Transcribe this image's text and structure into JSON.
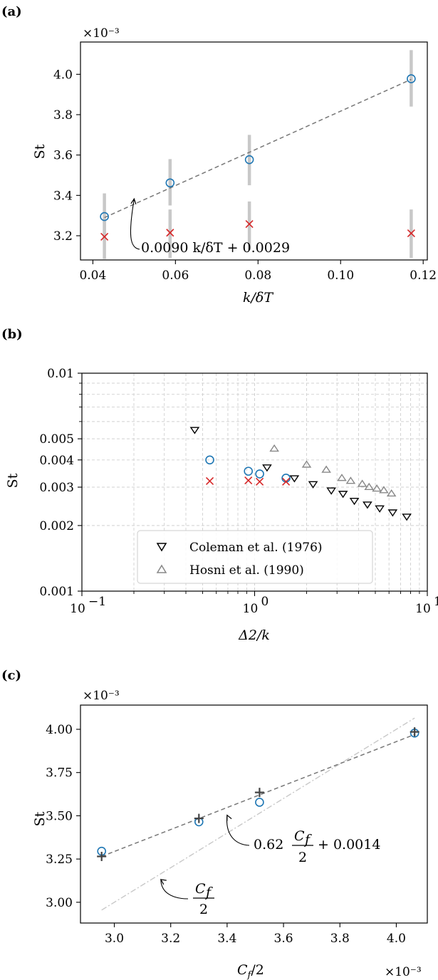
{
  "chart_data": [
    {
      "panel": "(a)",
      "type": "scatter",
      "xlabel": "k/δT",
      "ylabel": "St",
      "multiplier": "×10⁻³",
      "xlim": [
        0.037,
        0.121
      ],
      "ylim": [
        3.08,
        4.16
      ],
      "xticks": [
        0.04,
        0.06,
        0.08,
        0.1,
        0.12
      ],
      "xticklabels": [
        "0.04",
        "0.06",
        "0.08",
        "0.10",
        "0.12"
      ],
      "yticks": [
        3.2,
        3.4,
        3.6,
        3.8,
        4.0
      ],
      "yticklabels": [
        "3.2",
        "3.4",
        "3.6",
        "3.8",
        "4.0"
      ],
      "series": [
        {
          "marker": "circle",
          "color": "#1f77b4",
          "x": [
            0.0428,
            0.0587,
            0.0779,
            0.1171
          ],
          "y": [
            3.295,
            3.462,
            3.577,
            3.978
          ],
          "err_low": [
            3.18,
            3.35,
            3.45,
            3.84
          ],
          "err_high": [
            3.41,
            3.58,
            3.7,
            4.12
          ]
        },
        {
          "marker": "x",
          "color": "#d62728",
          "x": [
            0.0428,
            0.0587,
            0.0779,
            0.1171
          ],
          "y": [
            3.195,
            3.215,
            3.258,
            3.212
          ],
          "err_low": [
            3.085,
            3.09,
            3.13,
            3.09
          ],
          "err_high": [
            3.3,
            3.33,
            3.37,
            3.33
          ]
        }
      ],
      "fit": {
        "slope": 0.009,
        "intercept": 0.0029,
        "x_range": [
          0.0428,
          0.1171
        ],
        "y_range": [
          3.29,
          3.975
        ],
        "color": "#777777",
        "style": "dashed"
      },
      "annotation": "0.0090 k/δT + 0.0029",
      "annotation_arrow_target": [
        0.05,
        3.33
      ],
      "errorbar_color": "#c8c8c8"
    },
    {
      "panel": "(b)",
      "type": "scatter",
      "xscale": "log",
      "yscale": "log",
      "xlabel": "Δ2/k",
      "ylabel": "St",
      "xlim": [
        0.1,
        10
      ],
      "ylim": [
        0.001,
        0.01
      ],
      "xtick_powers": [
        "10",
        "10",
        "10"
      ],
      "xtick_exponents": [
        "−1",
        "0",
        "1"
      ],
      "yticklabels": [
        "0.01",
        "0.005",
        "0.004",
        "0.003",
        "0.002",
        "0.001"
      ],
      "ytick_values": [
        0.01,
        0.005,
        0.004,
        0.003,
        0.002,
        0.001
      ],
      "grid": true,
      "legend_position": "lower-center",
      "legend": [
        {
          "label": "Coleman et al. (1976)",
          "marker": "triangle-down",
          "color": "#000000"
        },
        {
          "label": "Hosni et al. (1990)",
          "marker": "triangle-up",
          "color": "#888888"
        }
      ],
      "series": [
        {
          "marker": "circle",
          "color": "#1f77b4",
          "x": [
            0.55,
            0.92,
            1.07,
            1.52
          ],
          "y": [
            0.004,
            0.00355,
            0.00345,
            0.0033
          ]
        },
        {
          "marker": "x",
          "color": "#d62728",
          "x": [
            0.55,
            0.92,
            1.07,
            1.52
          ],
          "y": [
            0.0032,
            0.00322,
            0.00318,
            0.00318
          ]
        },
        {
          "name": "Coleman et al. (1976)",
          "marker": "triangle-down",
          "color": "#000000",
          "x": [
            0.45,
            1.18,
            1.7,
            2.18,
            2.78,
            3.25,
            3.78,
            4.5,
            5.3,
            6.3,
            7.6
          ],
          "y": [
            0.0055,
            0.0037,
            0.0033,
            0.0031,
            0.0029,
            0.0028,
            0.0026,
            0.0025,
            0.0024,
            0.0023,
            0.0022
          ]
        },
        {
          "name": "Hosni et al. (1990)",
          "marker": "triangle-up",
          "color": "#888888",
          "x": [
            1.3,
            2.0,
            2.6,
            3.2,
            3.6,
            4.2,
            4.6,
            5.1,
            5.6,
            6.2
          ],
          "y": [
            0.0045,
            0.0038,
            0.0036,
            0.0033,
            0.0032,
            0.0031,
            0.003,
            0.00295,
            0.0029,
            0.0028
          ]
        }
      ]
    },
    {
      "panel": "(c)",
      "type": "scatter",
      "xlabel": "Cf/2",
      "ylabel": "St",
      "multiplier_y": "×10⁻³",
      "multiplier_x": "×10⁻³",
      "xlim": [
        2.88,
        4.11
      ],
      "ylim": [
        2.88,
        4.14
      ],
      "xticks": [
        3.0,
        3.2,
        3.4,
        3.6,
        3.8,
        4.0
      ],
      "xticklabels": [
        "3.0",
        "3.2",
        "3.4",
        "3.6",
        "3.8",
        "4.0"
      ],
      "yticks": [
        3.0,
        3.25,
        3.5,
        3.75,
        4.0
      ],
      "yticklabels": [
        "3.00",
        "3.25",
        "3.50",
        "3.75",
        "4.00"
      ],
      "series": [
        {
          "marker": "circle",
          "color": "#1f77b4",
          "x": [
            2.955,
            3.3,
            3.515,
            4.065
          ],
          "y": [
            3.295,
            3.465,
            3.578,
            3.978
          ]
        },
        {
          "marker": "plus",
          "color": "#444444",
          "x": [
            2.955,
            3.3,
            3.515,
            4.065
          ],
          "y": [
            3.265,
            3.485,
            3.635,
            3.985
          ]
        }
      ],
      "fit": {
        "slope": 0.62,
        "intercept": 0.0014,
        "x_range": [
          2.955,
          4.065
        ],
        "y_range": [
          3.265,
          3.97
        ],
        "color": "#777777",
        "style": "dashed"
      },
      "reference_line": {
        "x_range": [
          2.955,
          4.065
        ],
        "y_range": [
          2.955,
          4.065
        ],
        "color": "#c8c8c8",
        "style": "dash-dot"
      },
      "annotation_fit": {
        "coef": "0.62",
        "num": "C",
        "sub": "f",
        "den": "2",
        "tail": "+ 0.0014"
      },
      "annotation_ref": {
        "num": "C",
        "sub": "f",
        "den": "2"
      },
      "annotation_fit_arrow_target": [
        3.4,
        3.52
      ],
      "annotation_ref_arrow_target": [
        3.16,
        3.14
      ]
    }
  ]
}
